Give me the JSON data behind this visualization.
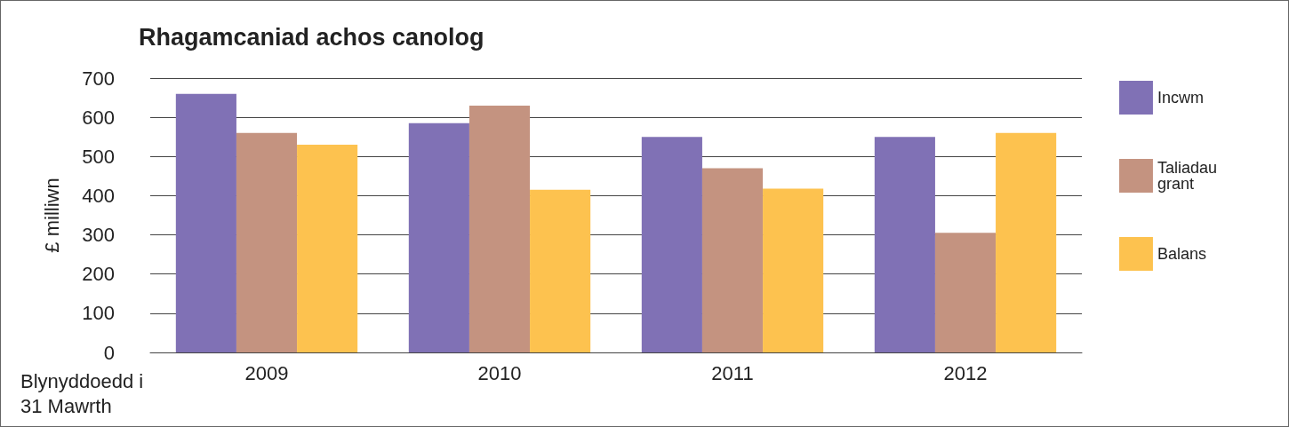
{
  "chart_data": {
    "type": "bar",
    "title": "Rhagamcaniad achos canolog",
    "xlabel": "Blynyddoedd i 31 Mawrth",
    "ylabel": "£ milliwn",
    "categories": [
      "2009",
      "2010",
      "2011",
      "2012"
    ],
    "series": [
      {
        "name": "Incwm",
        "color": "#8071b5",
        "values": [
          660,
          585,
          550,
          550
        ]
      },
      {
        "name": "Taliadau grant",
        "color": "#c49380",
        "values": [
          560,
          630,
          470,
          305
        ]
      },
      {
        "name": "Balans",
        "color": "#fdc24f",
        "values": [
          530,
          415,
          418,
          560
        ]
      }
    ],
    "ylim": [
      0,
      700
    ],
    "yticks": [
      0,
      100,
      200,
      300,
      400,
      500,
      600,
      700
    ],
    "grid": "y",
    "legend": "right"
  }
}
